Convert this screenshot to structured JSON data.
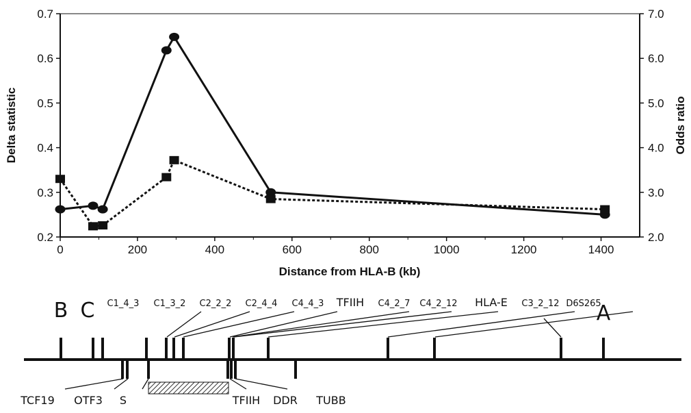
{
  "chart_data": {
    "type": "line",
    "title": "",
    "xlabel": "Distance from HLA-B (kb)",
    "ylabel": "Delta statistic",
    "y2label": "Odds ratio",
    "xlim": [
      0,
      1500
    ],
    "ylim": [
      0.2,
      0.7
    ],
    "y2lim": [
      2.0,
      7.0
    ],
    "xticks": [
      "0",
      "200",
      "400",
      "600",
      "800",
      "1000",
      "1200",
      "1400"
    ],
    "yticks": [
      "0.2",
      "0.3",
      "0.4",
      "0.5",
      "0.6",
      "0.7"
    ],
    "y2ticks": [
      "2.0",
      "3.0",
      "4.0",
      "5.0",
      "6.0",
      "7.0"
    ],
    "grid": false,
    "series": [
      {
        "marker": "circle",
        "style": "solid",
        "axis": "left",
        "x": [
          0,
          85,
          110,
          275,
          295,
          545,
          1410
        ],
        "y": [
          0.262,
          0.27,
          0.262,
          0.618,
          0.648,
          0.3,
          0.25
        ]
      },
      {
        "marker": "square",
        "style": "dotted",
        "axis": "left",
        "x": [
          0,
          85,
          110,
          275,
          295,
          545,
          1410
        ],
        "y": [
          0.33,
          0.224,
          0.226,
          0.334,
          0.372,
          0.285,
          0.262
        ]
      }
    ]
  },
  "gene_map": {
    "top_labels": [
      "B",
      "C",
      "C1_4_3",
      "C1_3_2",
      "C2_2_2",
      "C2_4_4",
      "C4_4_3",
      "TFIIH",
      "C4_2_7",
      "C4_2_12",
      "HLA-E",
      "C3_2_12",
      "D6S265",
      "A"
    ],
    "bottom_labels": [
      "TCF19",
      "OTF3",
      "S",
      "TFIIH",
      "DDR",
      "TUBB"
    ]
  }
}
